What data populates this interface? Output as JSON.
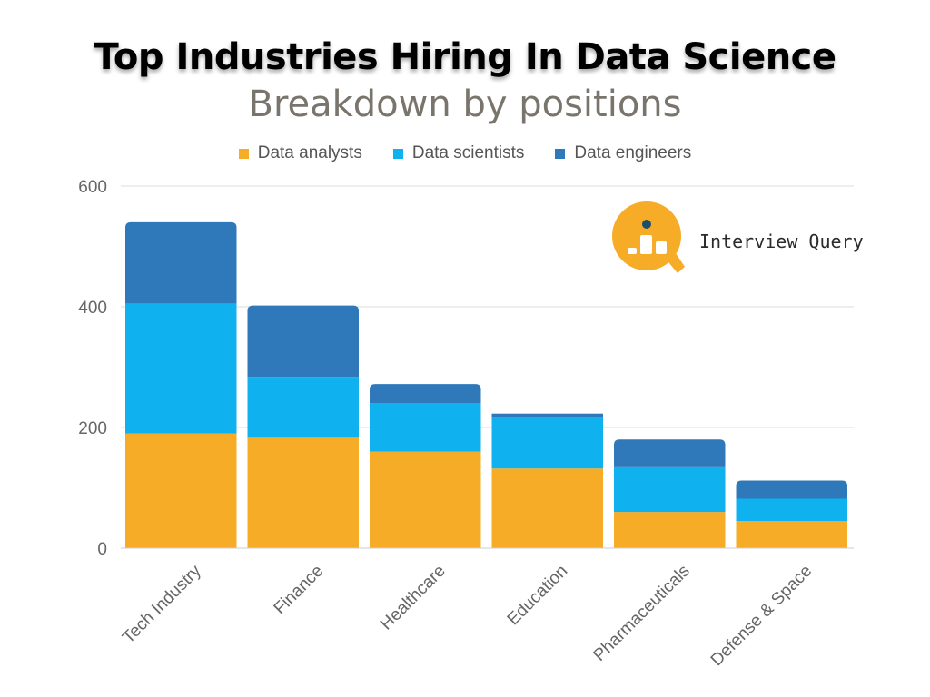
{
  "header": {
    "title": "Top Industries Hiring In Data Science",
    "subtitle": "Breakdown by positions"
  },
  "logo": {
    "text": "Interview Query",
    "icon": "magnifier-chart-icon",
    "color": "#f6ac27"
  },
  "chart_data": {
    "type": "bar",
    "stacked": true,
    "title": "Top Industries Hiring In Data Science",
    "subtitle": "Breakdown by positions",
    "xlabel": "",
    "ylabel": "",
    "ylim": [
      0,
      600
    ],
    "yticks": [
      0,
      200,
      400,
      600
    ],
    "grid": true,
    "legend_position": "top-center",
    "categories": [
      "Tech Industry",
      "Finance",
      "Healthcare",
      "Education",
      "Pharmaceuticals",
      "Defense & Space"
    ],
    "series": [
      {
        "name": "Data analysts",
        "color": "#f6ac27",
        "values": [
          190,
          183,
          160,
          132,
          60,
          45
        ]
      },
      {
        "name": "Data scientists",
        "color": "#10b1ef",
        "values": [
          215,
          101,
          80,
          84,
          74,
          37
        ]
      },
      {
        "name": "Data engineers",
        "color": "#2f79ba",
        "values": [
          135,
          118,
          32,
          7,
          46,
          30
        ]
      }
    ]
  }
}
